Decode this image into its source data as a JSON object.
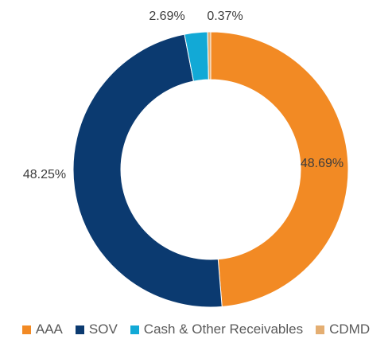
{
  "chart_data": {
    "type": "pie",
    "donut": true,
    "title": "",
    "slices": [
      {
        "label": "AAA",
        "value": 48.69,
        "display": "48.69%",
        "color": "#F28A24"
      },
      {
        "label": "SOV",
        "value": 48.25,
        "display": "48.25%",
        "color": "#0B3A70"
      },
      {
        "label": "Cash & Other Receivables",
        "value": 2.69,
        "display": "2.69%",
        "color": "#12A9D6"
      },
      {
        "label": "CDMD",
        "value": 0.37,
        "display": "0.37%",
        "color": "#E4AE72"
      }
    ],
    "legend_position": "bottom"
  },
  "legend": {
    "items": [
      {
        "label": "AAA",
        "color": "#F28A24"
      },
      {
        "label": "SOV",
        "color": "#0B3A70"
      },
      {
        "label": "Cash & Other Receivables",
        "color": "#12A9D6"
      },
      {
        "label": "CDMD",
        "color": "#E4AE72"
      }
    ]
  }
}
